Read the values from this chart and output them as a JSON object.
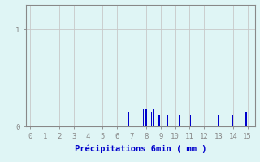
{
  "xlabel": "Précipitations 6min ( mm )",
  "bar_positions": [
    6.8,
    7.65,
    7.8,
    7.95,
    8.05,
    8.2,
    8.35,
    8.5,
    8.9,
    9.5,
    10.3,
    11.05,
    13.0,
    14.0,
    14.9
  ],
  "bar_heights": [
    0.15,
    0.12,
    0.18,
    0.18,
    0.18,
    0.18,
    0.15,
    0.18,
    0.12,
    0.12,
    0.12,
    0.12,
    0.12,
    0.12,
    0.15
  ],
  "bar_width": 0.07,
  "bar_color": "#0000cc",
  "bg_color": "#dff5f5",
  "grid_color": "#c8c8c8",
  "axis_color": "#888888",
  "text_color": "#0000cc",
  "xlim": [
    -0.3,
    15.5
  ],
  "ylim": [
    0,
    1.25
  ],
  "xticks": [
    0,
    1,
    2,
    3,
    4,
    5,
    6,
    7,
    8,
    9,
    10,
    11,
    12,
    13,
    14,
    15
  ],
  "yticks": [
    0,
    1
  ],
  "ytick_labels": [
    "0",
    "1"
  ],
  "xlabel_fontsize": 7.5,
  "tick_fontsize": 6.5
}
